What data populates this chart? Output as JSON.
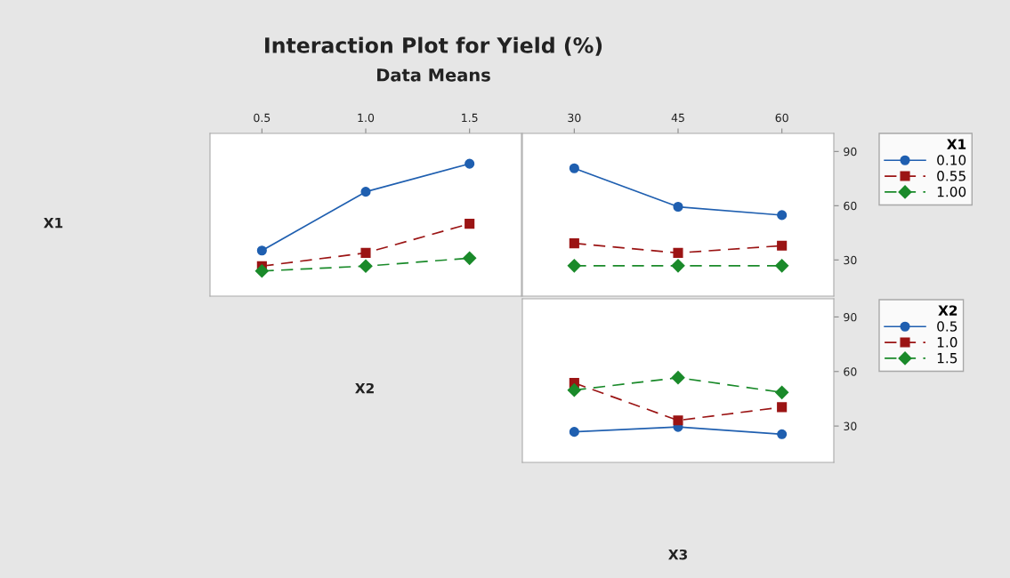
{
  "chart_data": [
    {
      "type": "line",
      "title": "Interaction Plot for Yield (%)",
      "subtitle": "Data Means",
      "annotations": [
        "X1",
        "X2",
        "X3"
      ],
      "tick_labels": "x",
      "xlim": [
        0.25,
        1.75
      ],
      "xticks": [
        {
          "value": 0.5,
          "label": "0.5"
        },
        {
          "value": 1.0,
          "label": "1.0"
        },
        {
          "value": 1.5,
          "label": "1.5"
        }
      ],
      "ylim": [
        10,
        100
      ],
      "yticks": [
        30,
        60,
        90
      ],
      "x": [
        0.5,
        1.0,
        1.5
      ],
      "series": [
        {
          "color": "#1f5fb0",
          "marker": "circle",
          "line_style": "solid",
          "values": [
            35.2,
            67.7,
            83.2
          ]
        },
        {
          "color": "#9b1414",
          "marker": "square",
          "line_style": "dashed",
          "values": [
            26.6,
            33.9,
            50.0
          ]
        },
        {
          "color": "#1a8a2a",
          "marker": "diamond",
          "line_style": "dashed",
          "values": [
            23.9,
            26.6,
            31.0
          ]
        }
      ]
    },
    {
      "type": "line",
      "legend": "right",
      "legend_title": "X1",
      "xlim": [
        22.5,
        67.5
      ],
      "xticks": [
        30,
        45,
        60
      ],
      "ylim": [
        10,
        100
      ],
      "yticks": [
        30,
        60,
        90
      ],
      "x": [
        30,
        45,
        60
      ],
      "series": [
        {
          "name": "0.10",
          "color": "#1f5fb0",
          "marker": "circle",
          "line_style": "solid",
          "values": [
            80.7,
            59.4,
            54.8
          ]
        },
        {
          "name": "0.55",
          "color": "#9b1414",
          "marker": "square",
          "line_style": "dashed",
          "values": [
            39.2,
            33.9,
            37.9
          ]
        },
        {
          "name": "1.00",
          "color": "#1a8a2a",
          "marker": "diamond",
          "line_style": "dashed",
          "values": [
            26.8,
            26.8,
            26.8
          ]
        }
      ]
    },
    {
      "type": "line",
      "legend": "right",
      "legend_title": "X2",
      "tick_labels": "y",
      "xlim": [
        22.5,
        67.5
      ],
      "xticks": [
        30,
        45,
        60
      ],
      "ylim": [
        10,
        100
      ],
      "yticks": [
        30,
        60,
        90
      ],
      "x": [
        30,
        45,
        60
      ],
      "series": [
        {
          "name": "0.5",
          "color": "#1f5fb0",
          "marker": "circle",
          "line_style": "solid",
          "values": [
            26.8,
            29.5,
            25.5
          ]
        },
        {
          "name": "1.0",
          "color": "#9b1414",
          "marker": "square",
          "line_style": "dashed",
          "values": [
            53.7,
            33.1,
            40.4
          ]
        },
        {
          "name": "1.5",
          "color": "#1a8a2a",
          "marker": "diamond",
          "line_style": "dashed",
          "values": [
            49.8,
            56.6,
            48.5
          ]
        }
      ]
    }
  ]
}
